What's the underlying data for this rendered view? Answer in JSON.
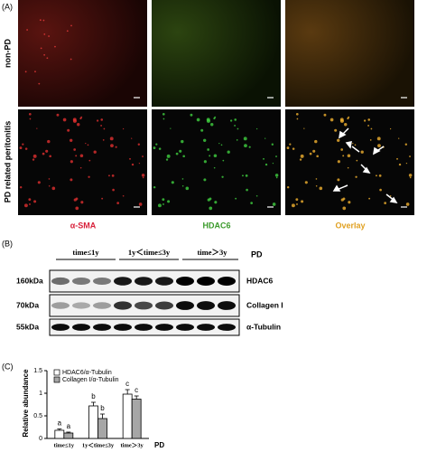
{
  "panel_a": {
    "label": "(A)",
    "row_labels": [
      "non-PD",
      "PD related peritonitis"
    ],
    "column_labels": [
      "α-SMA",
      "HDAC6",
      "Overlay"
    ]
  },
  "panel_b": {
    "label": "(B)",
    "group_labels": [
      "time≤1y",
      "1y＜time≤3y",
      "time＞3y"
    ],
    "group_axis_label": "PD",
    "markers": [
      "160kDa",
      "70kDa",
      "55kDa"
    ],
    "proteins": [
      "HDAC6",
      "Collagen I",
      "α-Tubulin"
    ]
  },
  "panel_c": {
    "label": "(C)"
  },
  "chart_data": {
    "type": "bar",
    "ylabel": "Relative abundance",
    "xlabel": "PD",
    "categories": [
      "time≤1y",
      "1y＜time≤3y",
      "time＞3y"
    ],
    "series": [
      {
        "name": "HDAC6/α-Tubulin",
        "color": "#ffffff",
        "values": [
          0.18,
          0.72,
          0.98
        ],
        "errors": [
          0.03,
          0.08,
          0.1
        ],
        "letters": [
          "a",
          "b",
          "c"
        ]
      },
      {
        "name": "Collagen I/α-Tubulin",
        "color": "#a6a6a6",
        "values": [
          0.12,
          0.44,
          0.87
        ],
        "errors": [
          0.02,
          0.1,
          0.07
        ],
        "letters": [
          "a",
          "b",
          "c"
        ]
      }
    ],
    "ylim": [
      0,
      1.5
    ],
    "yticks": [
      0,
      0.5,
      1,
      1.5
    ],
    "legend": "top-left"
  }
}
